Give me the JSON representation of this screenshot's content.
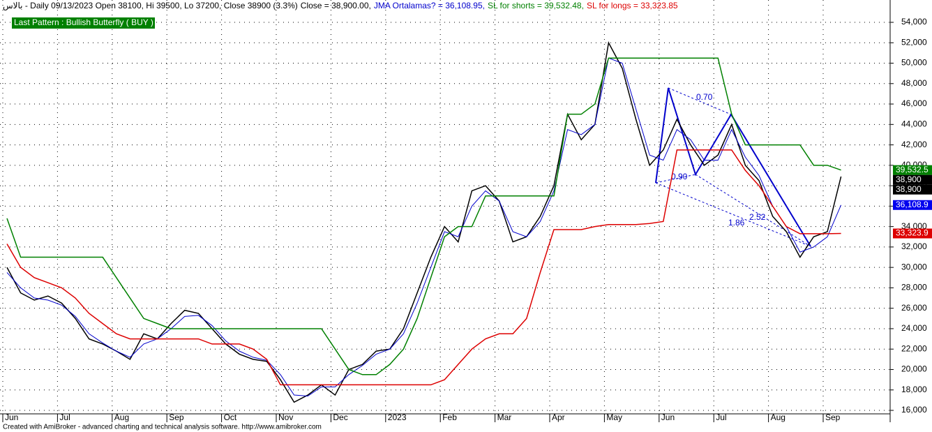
{
  "chart_data": {
    "type": "line",
    "header": "بالاس - Daily 09/13/2023 Open 38100, Hi 39500, Lo 37200, Close 38900 (3.3%)",
    "pattern_title": "Last Pattern : Bullish Butterfly ( BUY )",
    "pattern_labels": [
      "0.70",
      "0.90",
      "1.86",
      "2.52"
    ],
    "footer": "Created with AmiBroker - advanced charting and technical analysis software. http://www.amibroker.com",
    "categories": [
      "Jun",
      null,
      null,
      null,
      "Jul",
      null,
      null,
      null,
      "Aug",
      null,
      null,
      null,
      "Sep",
      null,
      null,
      null,
      "Oct",
      null,
      null,
      null,
      "Nov",
      null,
      null,
      null,
      "Dec",
      null,
      null,
      null,
      "2023",
      null,
      null,
      null,
      "Feb",
      null,
      null,
      null,
      "Mar",
      null,
      null,
      null,
      "Apr",
      null,
      null,
      null,
      "May",
      null,
      null,
      null,
      "Jun",
      null,
      null,
      null,
      "Jul",
      null,
      null,
      null,
      "Aug",
      null,
      null,
      null,
      "Sep",
      null
    ],
    "series": [
      {
        "label": "Close = 38,900.00,",
        "color": "#000000",
        "width": 1.5,
        "values": [
          30000,
          27500,
          26800,
          27200,
          26500,
          25000,
          23000,
          22500,
          21800,
          21000,
          23500,
          23000,
          24500,
          25800,
          25500,
          24000,
          22500,
          21500,
          21000,
          20800,
          19000,
          16800,
          17500,
          18500,
          17500,
          20000,
          20500,
          21800,
          22000,
          24000,
          27500,
          31000,
          34000,
          32500,
          37500,
          38000,
          36500,
          32500,
          33000,
          35000,
          38000,
          45000,
          42500,
          44000,
          52000,
          49500,
          44500,
          40000,
          41500,
          44500,
          42000,
          40000,
          41000,
          44000,
          40000,
          38500,
          35000,
          33500,
          31000,
          33000,
          33500,
          38900
        ]
      },
      {
        "label": "JMA Ortalamas? = 36,108.95,",
        "color": "#0000cc",
        "width": 1,
        "values": [
          29500,
          28000,
          27000,
          26800,
          26300,
          25200,
          23500,
          22600,
          21800,
          21200,
          22500,
          23000,
          24000,
          25200,
          25300,
          24300,
          22800,
          21800,
          21200,
          20900,
          19500,
          17500,
          17400,
          18300,
          18300,
          19500,
          20400,
          21500,
          22000,
          23500,
          26500,
          30000,
          33500,
          33000,
          36000,
          37500,
          36500,
          33500,
          33000,
          34500,
          37500,
          43500,
          43000,
          44000,
          50500,
          50000,
          45500,
          41000,
          40500,
          43500,
          42500,
          40500,
          40500,
          43500,
          40800,
          39000,
          36000,
          34000,
          31500,
          32000,
          33000,
          36108.95
        ]
      },
      {
        "label": "SL for shorts = 39,532.48,",
        "color": "#008000",
        "width": 1.5,
        "values": [
          34800,
          31000,
          31000,
          31000,
          31000,
          31000,
          31000,
          31000,
          29000,
          27000,
          25000,
          24500,
          24000,
          24000,
          24000,
          24000,
          24000,
          24000,
          24000,
          24000,
          24000,
          24000,
          24000,
          24000,
          22000,
          20000,
          19500,
          19500,
          20500,
          22000,
          25000,
          29000,
          33000,
          34000,
          34000,
          37000,
          37000,
          37000,
          37000,
          37000,
          37000,
          45000,
          45000,
          46000,
          50500,
          50500,
          50500,
          50500,
          50500,
          50500,
          50500,
          50500,
          50500,
          45000,
          42000,
          42000,
          42000,
          42000,
          42000,
          40000,
          40000,
          39532.48
        ]
      },
      {
        "label": "SL for longs = 33,323.85",
        "color": "#dd0000",
        "width": 1.5,
        "values": [
          32300,
          30000,
          29000,
          28500,
          28000,
          27000,
          25500,
          24500,
          23500,
          23000,
          23000,
          23000,
          23000,
          23000,
          23000,
          22500,
          22500,
          22500,
          22000,
          21000,
          18500,
          18500,
          18500,
          18500,
          18500,
          18500,
          18500,
          18500,
          18500,
          18500,
          18500,
          18500,
          19000,
          20500,
          22000,
          23000,
          23500,
          23500,
          25000,
          29500,
          33700,
          33700,
          33700,
          34000,
          34200,
          34200,
          34200,
          34300,
          34500,
          41500,
          41500,
          41500,
          41500,
          41500,
          39500,
          38000,
          36000,
          34000,
          33300,
          33300,
          33300,
          33323.85
        ]
      }
    ],
    "price_tags": [
      {
        "value": 39532.5,
        "label": "39,532.5",
        "color": "#008000"
      },
      {
        "value": 38900,
        "label": "38,900",
        "color": "#000000"
      },
      {
        "value": 38900,
        "label": "38,900",
        "color": "#000000"
      },
      {
        "value": 36108.9,
        "label": "36,108.9",
        "color": "#0000ee"
      },
      {
        "value": 33323.9,
        "label": "33,323.9",
        "color": "#dd0000"
      }
    ],
    "ylim": [
      16000,
      54000
    ],
    "yticks": [
      {
        "value": 16000,
        "label": "16,000"
      },
      {
        "value": 18000,
        "label": "18,000"
      },
      {
        "value": 20000,
        "label": "20,000"
      },
      {
        "value": 22000,
        "label": "22,000"
      },
      {
        "value": 24000,
        "label": "24,000"
      },
      {
        "value": 26000,
        "label": "26,000"
      },
      {
        "value": 28000,
        "label": "28,000"
      },
      {
        "value": 30000,
        "label": "30,000"
      },
      {
        "value": 32000,
        "label": "32,000"
      },
      {
        "value": 34000,
        "label": "34,000"
      },
      {
        "value": 36000,
        "label": "36,000"
      },
      {
        "value": 38000,
        "label": "38,000"
      },
      {
        "value": 40000,
        "label": "40,000"
      },
      {
        "value": 42000,
        "label": "42,000"
      },
      {
        "value": 44000,
        "label": "44,000"
      },
      {
        "value": 46000,
        "label": "46,000"
      },
      {
        "value": 48000,
        "label": "48,000"
      },
      {
        "value": 50000,
        "label": "50,000"
      },
      {
        "value": 52000,
        "label": "52,000"
      },
      {
        "value": 54000,
        "label": "54,000"
      }
    ],
    "grid": true
  }
}
